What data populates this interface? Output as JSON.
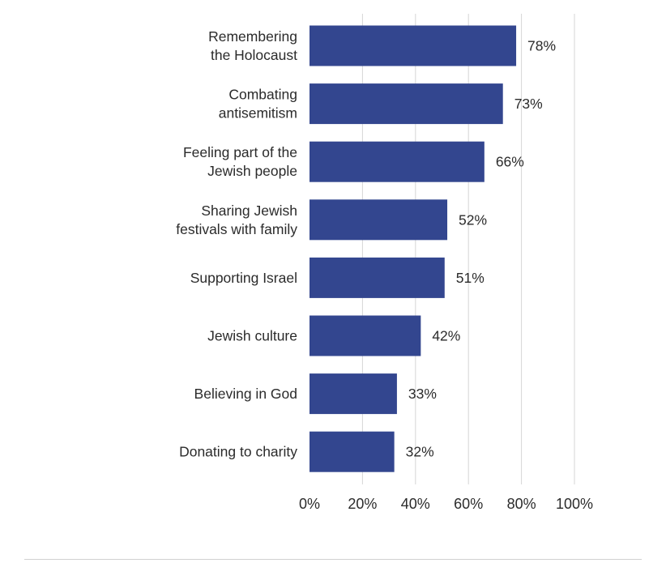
{
  "chart_data": {
    "type": "bar",
    "orientation": "horizontal",
    "title": "",
    "xlabel": "",
    "ylabel": "",
    "categories": [
      [
        "Remembering",
        "the Holocaust"
      ],
      [
        "Combating",
        "antisemitism"
      ],
      [
        "Feeling part of the",
        "Jewish people"
      ],
      [
        "Sharing Jewish",
        "festivals with family"
      ],
      [
        "Supporting Israel"
      ],
      [
        "Jewish culture"
      ],
      [
        "Believing in God"
      ],
      [
        "Donating to charity"
      ]
    ],
    "values": [
      78,
      73,
      66,
      52,
      51,
      42,
      33,
      32
    ],
    "value_labels": [
      "78%",
      "73%",
      "66%",
      "52%",
      "51%",
      "42%",
      "33%",
      "32%"
    ],
    "xlim": [
      0,
      100
    ],
    "xticks": [
      0,
      20,
      40,
      60,
      80,
      100
    ],
    "xtick_labels": [
      "0%",
      "20%",
      "40%",
      "60%",
      "80%",
      "100%"
    ],
    "grid": "vertical",
    "legend": "none",
    "bar_color": "#33468f",
    "grid_color": "#d6d6d6"
  }
}
